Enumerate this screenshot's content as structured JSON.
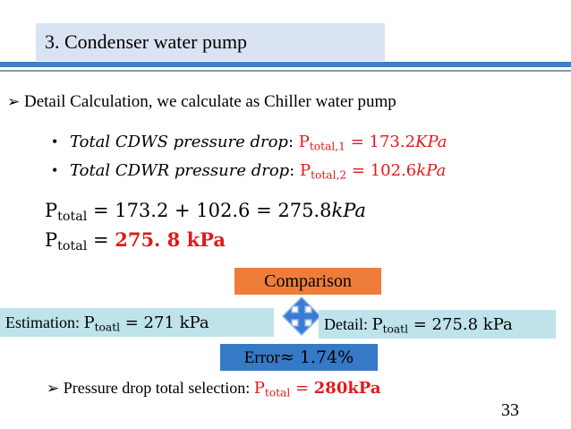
{
  "title": "3. Condenser water pump",
  "intro": {
    "bullet": "➢",
    "text": "Detail Calculation, we calculate as Chiller water pump"
  },
  "bullets": [
    {
      "marker": "•",
      "label": "Total CDWS pressure drop",
      "colon": ": ",
      "symbol": "P",
      "subscript": "total,1",
      "rest": " = 173.2",
      "unit": "KPa"
    },
    {
      "marker": "•",
      "label": "Total CDWR pressure drop",
      "colon": ": ",
      "symbol": "P",
      "subscript": "total,2",
      "rest": " = 102.6",
      "unit": "kPa"
    }
  ],
  "equations": [
    {
      "symbol": "P",
      "subscript": "total",
      "rest": " = 173.2 + 102.6 = 275.8",
      "unit": "kPa"
    },
    {
      "symbol": "P",
      "subscript": "total",
      "eq": " = ",
      "value": "275. 8 kPa"
    }
  ],
  "comparison": {
    "label": "Comparison",
    "estimation": {
      "prefix": "Estimation: ",
      "symbol": "P",
      "subscript": "toatl",
      "value": " = 271 kPa"
    },
    "detail": {
      "prefix": "Detail: ",
      "symbol": "P",
      "subscript": "toatl",
      "value": " = 275.8 kPa"
    },
    "error": {
      "prefix": "Error",
      "value": "≈ 1.74%"
    }
  },
  "selection": {
    "bullet": "➢",
    "text": "Pressure drop total selection: ",
    "symbol": "P",
    "subscript": "total",
    "eq": " = ",
    "value": "280kPa"
  },
  "page_number": "33",
  "colors": {
    "title_bg": "#dae3f1",
    "accent_blue": "#3f80c6",
    "orange": "#ee7d3a",
    "teal": "#bfe3ea",
    "error_blue": "#3679c4",
    "red": "#e11a1a",
    "arrow_fill": "#3a7bd5"
  },
  "icons": {
    "cross_arrow": "four-way-arrow-icon"
  }
}
